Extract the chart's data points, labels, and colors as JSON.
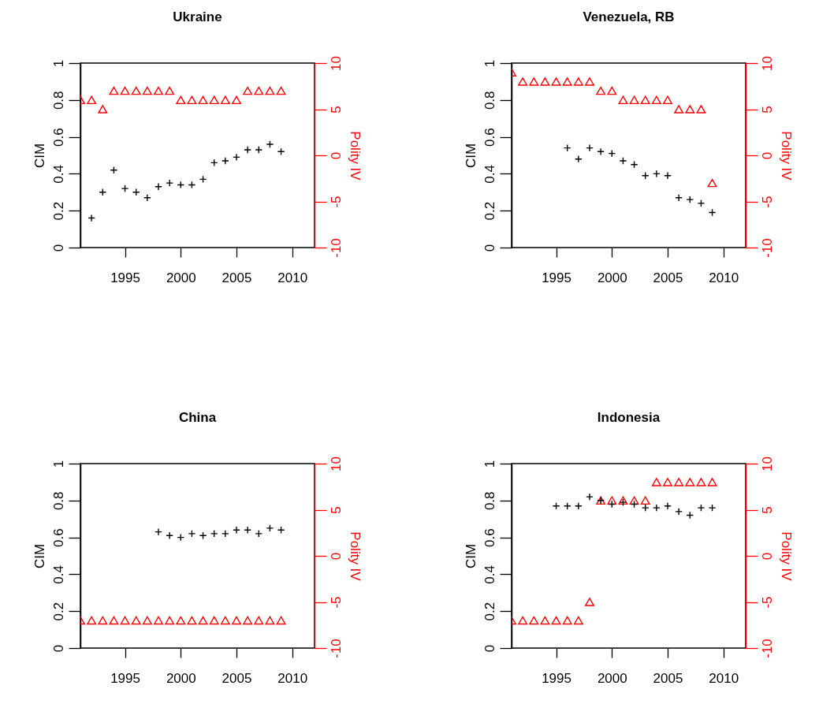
{
  "chart_data": [
    {
      "type": "scatter",
      "title": "Ukraine",
      "ylabel": "CIM",
      "y2label": "Polity IV",
      "x": [
        1991,
        1992,
        1993,
        1994,
        1995,
        1996,
        1997,
        1998,
        1999,
        2000,
        2001,
        2002,
        2003,
        2004,
        2005,
        2006,
        2007,
        2008,
        2009
      ],
      "xlim": [
        1991,
        2012
      ],
      "xticks": [
        1995,
        2000,
        2005,
        2010
      ],
      "ylim": [
        0,
        1
      ],
      "yticks": [
        0,
        0.2,
        0.4,
        0.6,
        0.8,
        1
      ],
      "y2lim": [
        -10,
        10
      ],
      "y2ticks": [
        -10,
        -5,
        0,
        5,
        10
      ],
      "grid": false,
      "series": [
        {
          "color": "#000000",
          "marker": "cross",
          "values": [
            null,
            0.16,
            0.3,
            0.42,
            0.32,
            0.3,
            0.27,
            0.33,
            0.35,
            0.34,
            0.34,
            0.37,
            0.46,
            0.47,
            0.49,
            0.53,
            0.53,
            0.56,
            0.52
          ]
        },
        {
          "color": "#ff0000",
          "marker": "triangle",
          "axis": "y2",
          "values": [
            6,
            6,
            5,
            7,
            7,
            7,
            7,
            7,
            7,
            6,
            6,
            6,
            6,
            6,
            6,
            7,
            7,
            7,
            7
          ]
        }
      ]
    },
    {
      "type": "scatter",
      "title": "Venezuela, RB",
      "ylabel": "CIM",
      "y2label": "Polity IV",
      "x": [
        1991,
        1992,
        1993,
        1994,
        1995,
        1996,
        1997,
        1998,
        1999,
        2000,
        2001,
        2002,
        2003,
        2004,
        2005,
        2006,
        2007,
        2008,
        2009
      ],
      "xlim": [
        1991,
        2012
      ],
      "xticks": [
        1995,
        2000,
        2005,
        2010
      ],
      "ylim": [
        0,
        1
      ],
      "yticks": [
        0,
        0.2,
        0.4,
        0.6,
        0.8,
        1
      ],
      "y2lim": [
        -10,
        10
      ],
      "y2ticks": [
        -10,
        -5,
        0,
        5,
        10
      ],
      "grid": false,
      "series": [
        {
          "color": "#000000",
          "marker": "cross",
          "values": [
            null,
            null,
            null,
            null,
            null,
            0.54,
            0.48,
            0.54,
            0.52,
            0.51,
            0.47,
            0.45,
            0.39,
            0.4,
            0.39,
            0.27,
            0.26,
            0.24,
            0.19
          ]
        },
        {
          "color": "#ff0000",
          "marker": "triangle",
          "axis": "y2",
          "values": [
            9,
            8,
            8,
            8,
            8,
            8,
            8,
            8,
            7,
            7,
            6,
            6,
            6,
            6,
            6,
            5,
            5,
            5,
            -3
          ]
        }
      ]
    },
    {
      "type": "scatter",
      "title": "China",
      "ylabel": "CIM",
      "y2label": "Polity IV",
      "x": [
        1991,
        1992,
        1993,
        1994,
        1995,
        1996,
        1997,
        1998,
        1999,
        2000,
        2001,
        2002,
        2003,
        2004,
        2005,
        2006,
        2007,
        2008,
        2009
      ],
      "xlim": [
        1991,
        2012
      ],
      "xticks": [
        1995,
        2000,
        2005,
        2010
      ],
      "ylim": [
        0,
        1
      ],
      "yticks": [
        0,
        0.2,
        0.4,
        0.6,
        0.8,
        1
      ],
      "y2lim": [
        -10,
        10
      ],
      "y2ticks": [
        -10,
        -5,
        0,
        5,
        10
      ],
      "grid": false,
      "series": [
        {
          "color": "#000000",
          "marker": "cross",
          "values": [
            null,
            null,
            null,
            null,
            null,
            null,
            null,
            0.63,
            0.61,
            0.6,
            0.62,
            0.61,
            0.62,
            0.62,
            0.64,
            0.64,
            0.62,
            0.65,
            0.64
          ]
        },
        {
          "color": "#ff0000",
          "marker": "triangle",
          "axis": "y2",
          "values": [
            -7,
            -7,
            -7,
            -7,
            -7,
            -7,
            -7,
            -7,
            -7,
            -7,
            -7,
            -7,
            -7,
            -7,
            -7,
            -7,
            -7,
            -7,
            -7
          ]
        }
      ]
    },
    {
      "type": "scatter",
      "title": "Indonesia",
      "ylabel": "CIM",
      "y2label": "Polity IV",
      "x": [
        1991,
        1992,
        1993,
        1994,
        1995,
        1996,
        1997,
        1998,
        1999,
        2000,
        2001,
        2002,
        2003,
        2004,
        2005,
        2006,
        2007,
        2008,
        2009
      ],
      "xlim": [
        1991,
        2012
      ],
      "xticks": [
        1995,
        2000,
        2005,
        2010
      ],
      "ylim": [
        0,
        1
      ],
      "yticks": [
        0,
        0.2,
        0.4,
        0.6,
        0.8,
        1
      ],
      "y2lim": [
        -10,
        10
      ],
      "y2ticks": [
        -10,
        -5,
        0,
        5,
        10
      ],
      "grid": false,
      "series": [
        {
          "color": "#000000",
          "marker": "cross",
          "values": [
            null,
            null,
            null,
            null,
            0.77,
            0.77,
            0.77,
            0.82,
            0.8,
            0.78,
            0.79,
            0.78,
            0.76,
            0.76,
            0.77,
            0.74,
            0.72,
            0.76,
            0.76
          ]
        },
        {
          "color": "#ff0000",
          "marker": "triangle",
          "axis": "y2",
          "values": [
            -7,
            -7,
            -7,
            -7,
            -7,
            -7,
            -7,
            -5,
            6,
            6,
            6,
            6,
            6,
            8,
            8,
            8,
            8,
            8,
            8
          ]
        }
      ]
    }
  ]
}
